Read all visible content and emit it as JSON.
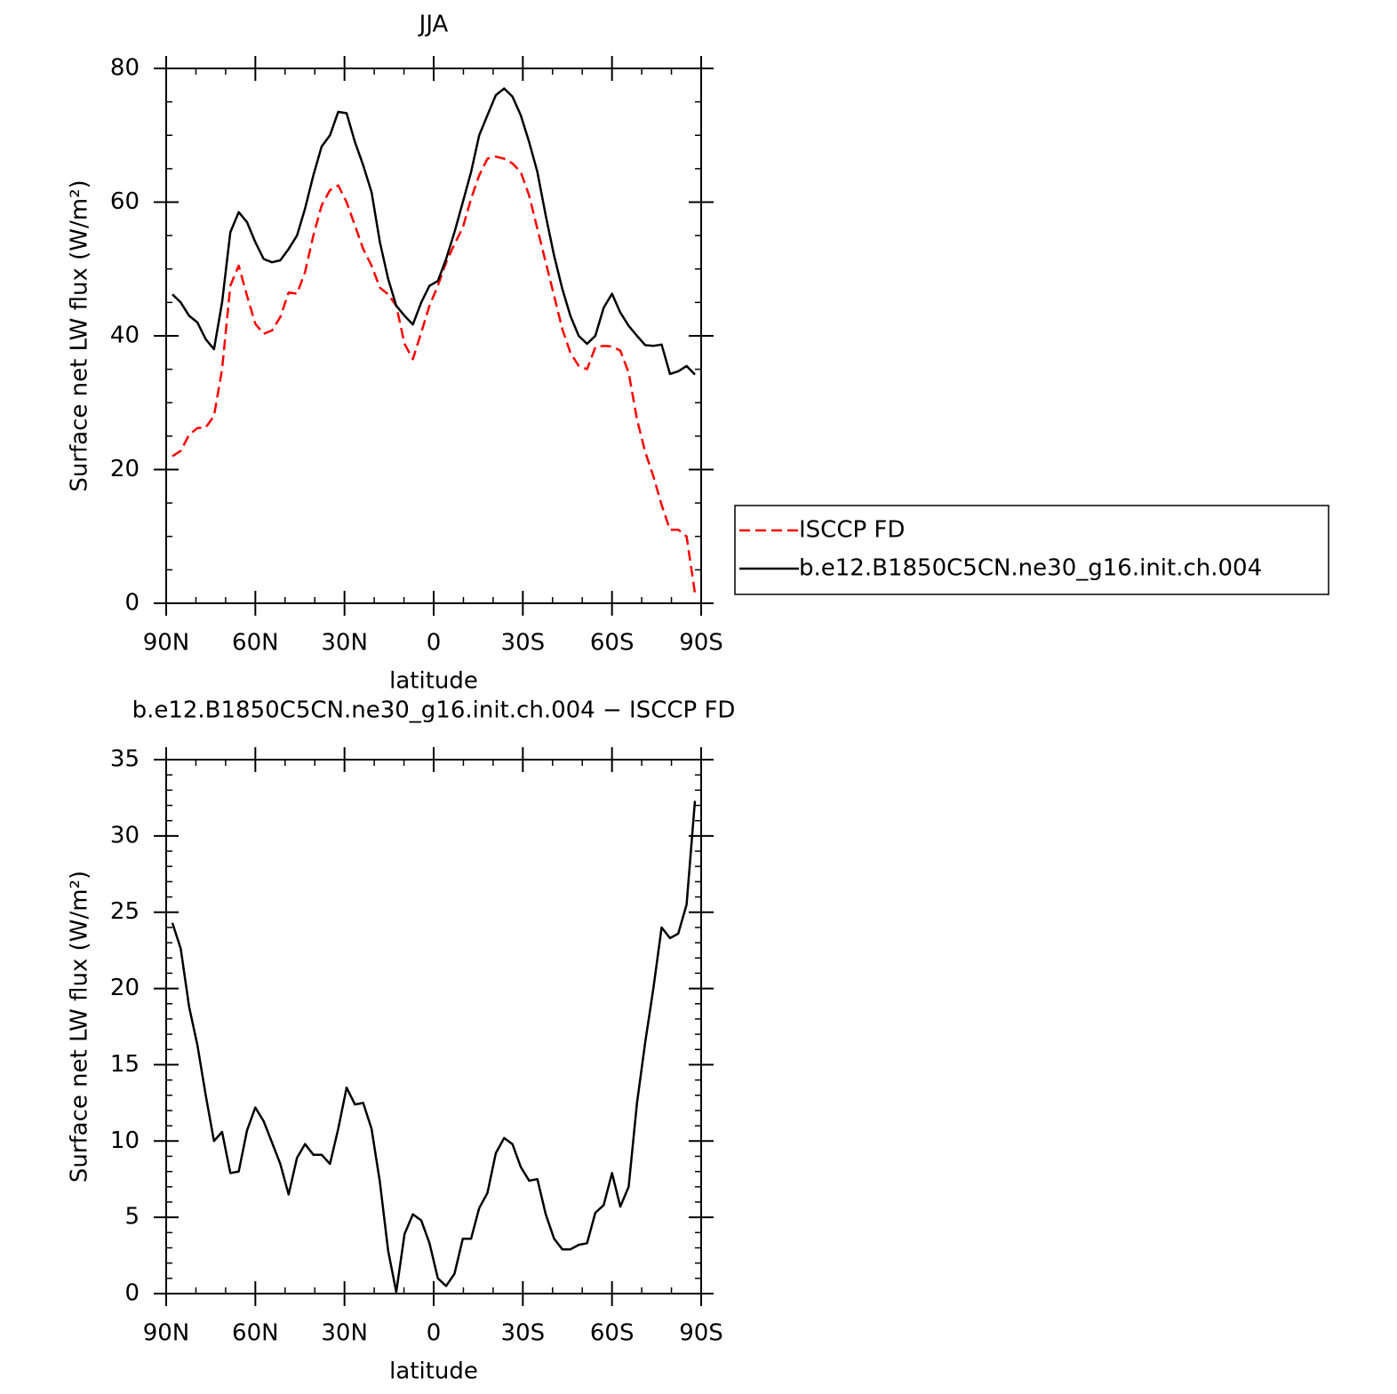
{
  "chart_data": [
    {
      "type": "line",
      "title": "JJA",
      "xlabel": "latitude",
      "ylabel": "Surface net LW flux (W/m²)",
      "x": [
        87.9,
        85.1,
        82.3,
        79.5,
        76.7,
        73.9,
        71.2,
        68.4,
        65.6,
        62.8,
        60.0,
        57.2,
        54.4,
        51.6,
        48.8,
        46.0,
        43.3,
        40.5,
        37.7,
        34.9,
        32.1,
        29.3,
        26.5,
        23.7,
        20.9,
        18.1,
        15.3,
        12.6,
        9.8,
        7.0,
        4.2,
        1.4,
        -1.4,
        -4.2,
        -7.0,
        -9.8,
        -12.6,
        -15.3,
        -18.1,
        -20.9,
        -23.7,
        -26.5,
        -29.3,
        -32.1,
        -34.9,
        -37.7,
        -40.5,
        -43.3,
        -46.0,
        -48.8,
        -51.6,
        -54.4,
        -57.2,
        -60.0,
        -62.8,
        -65.6,
        -68.4,
        -71.2,
        -73.9,
        -76.7,
        -79.5,
        -82.3,
        -85.1,
        -87.9
      ],
      "series": [
        {
          "name": "ISCCP FD",
          "color": "#ff0000",
          "dashed": true,
          "values": [
            22,
            22.8,
            25.2,
            26.2,
            26.3,
            28,
            35,
            47.5,
            50.5,
            46,
            41.8,
            40.3,
            40.8,
            42.8,
            46.5,
            46.3,
            49.5,
            55,
            59.5,
            61.8,
            62.5,
            60,
            56.5,
            53,
            50.5,
            47.2,
            46.2,
            44.5,
            38.8,
            36.5,
            40.5,
            44.5,
            47.5,
            51,
            53.7,
            56.2,
            60.5,
            64,
            66.5,
            66.8,
            66.5,
            65.8,
            64.5,
            61,
            56,
            51,
            46,
            41,
            37.5,
            35.5,
            35,
            38.3,
            38.5,
            38.4,
            37.8,
            34.5,
            27.5,
            22.6,
            19,
            14.7,
            11,
            11,
            10,
            1.5
          ]
        },
        {
          "name": "b.e12.B1850C5CN.ne30_g16.init.ch.004",
          "color": "#000000",
          "dashed": false,
          "values": [
            46.2,
            45,
            43,
            42,
            39.5,
            38,
            45,
            55.5,
            58.5,
            57,
            54,
            51.5,
            51,
            51.3,
            53,
            55,
            59,
            64,
            68.3,
            70,
            73.5,
            73.3,
            69,
            65.5,
            61.5,
            54,
            48.5,
            44.5,
            43,
            41.7,
            45,
            47.5,
            48.2,
            51.5,
            55.5,
            60,
            64.5,
            70,
            73,
            76,
            77,
            75.8,
            73,
            69,
            64.5,
            58,
            52,
            47,
            43,
            40,
            38.8,
            40,
            44.2,
            46.3,
            43.5,
            41.5,
            40,
            38.6,
            38.5,
            38.7,
            34.3,
            34.7,
            35.5,
            34.2
          ]
        }
      ],
      "xlim": [
        90,
        -90
      ],
      "xticks": [
        {
          "value": 90,
          "label": "90N"
        },
        {
          "value": 60,
          "label": "60N"
        },
        {
          "value": 30,
          "label": "30N"
        },
        0,
        {
          "value": -30,
          "label": "30S"
        },
        {
          "value": -60,
          "label": "60S"
        },
        {
          "value": -90,
          "label": "90S"
        }
      ],
      "xminorticks": [
        80,
        70,
        50,
        40,
        20,
        10,
        -10,
        -20,
        -40,
        -50,
        -70,
        -80
      ],
      "ylim": [
        0,
        80
      ],
      "yticks": [
        0,
        20,
        40,
        60,
        80
      ],
      "yminorticks": [
        5,
        10,
        15,
        25,
        30,
        35,
        45,
        50,
        55,
        65,
        70,
        75
      ],
      "legend": "outside-right"
    },
    {
      "type": "line",
      "title": "b.e12.B1850C5CN.ne30_g16.init.ch.004 − ISCCP FD",
      "xlabel": "latitude",
      "ylabel": "Surface net LW flux (W/m²)",
      "x": [
        87.9,
        85.1,
        82.3,
        79.5,
        76.7,
        73.9,
        71.2,
        68.4,
        65.6,
        62.8,
        60.0,
        57.2,
        54.4,
        51.6,
        48.8,
        46.0,
        43.3,
        40.5,
        37.7,
        34.9,
        32.1,
        29.3,
        26.5,
        23.7,
        20.9,
        18.1,
        15.3,
        12.6,
        9.8,
        7.0,
        4.2,
        1.4,
        -1.4,
        -4.2,
        -7.0,
        -9.8,
        -12.6,
        -15.3,
        -18.1,
        -20.9,
        -23.7,
        -26.5,
        -29.3,
        -32.1,
        -34.9,
        -37.7,
        -40.5,
        -43.3,
        -46.0,
        -48.8,
        -51.6,
        -54.4,
        -57.2,
        -60.0,
        -62.8,
        -65.6,
        -68.4,
        -71.2,
        -73.9,
        -76.7,
        -79.5,
        -82.3,
        -85.1,
        -87.9
      ],
      "color": "#000000",
      "values": [
        24.3,
        22.6,
        18.8,
        16.3,
        13,
        10,
        10.6,
        7.9,
        8,
        10.7,
        12.2,
        11.3,
        9.9,
        8.5,
        6.5,
        8.9,
        9.8,
        9.1,
        9.1,
        8.5,
        10.8,
        13.5,
        12.4,
        12.5,
        10.8,
        7.3,
        2.8,
        0.1,
        3.9,
        5.2,
        4.8,
        3.3,
        1.0,
        0.5,
        1.3,
        3.6,
        3.6,
        5.6,
        6.6,
        9.2,
        10.2,
        9.8,
        8.3,
        7.4,
        7.5,
        5.2,
        3.6,
        2.9,
        2.9,
        3.2,
        3.3,
        5.3,
        5.8,
        7.9,
        5.7,
        7,
        12.5,
        16.5,
        20,
        24,
        23.3,
        23.6,
        25.5,
        32.3
      ],
      "xlim": [
        90,
        -90
      ],
      "xticks": [
        {
          "value": 90,
          "label": "90N"
        },
        {
          "value": 60,
          "label": "60N"
        },
        {
          "value": 30,
          "label": "30N"
        },
        0,
        {
          "value": -30,
          "label": "30S"
        },
        {
          "value": -60,
          "label": "60S"
        },
        {
          "value": -90,
          "label": "90S"
        }
      ],
      "xminorticks": [
        80,
        70,
        50,
        40,
        20,
        10,
        -10,
        -20,
        -40,
        -50,
        -70,
        -80
      ],
      "ylim": [
        0,
        35
      ],
      "yticks": [
        0,
        5,
        10,
        15,
        20,
        25,
        30,
        35
      ],
      "yminorticks": [
        1,
        2,
        3,
        4,
        6,
        7,
        8,
        9,
        11,
        12,
        13,
        14,
        16,
        17,
        18,
        19,
        21,
        22,
        23,
        24,
        26,
        27,
        28,
        29,
        31,
        32,
        33,
        34
      ]
    }
  ]
}
